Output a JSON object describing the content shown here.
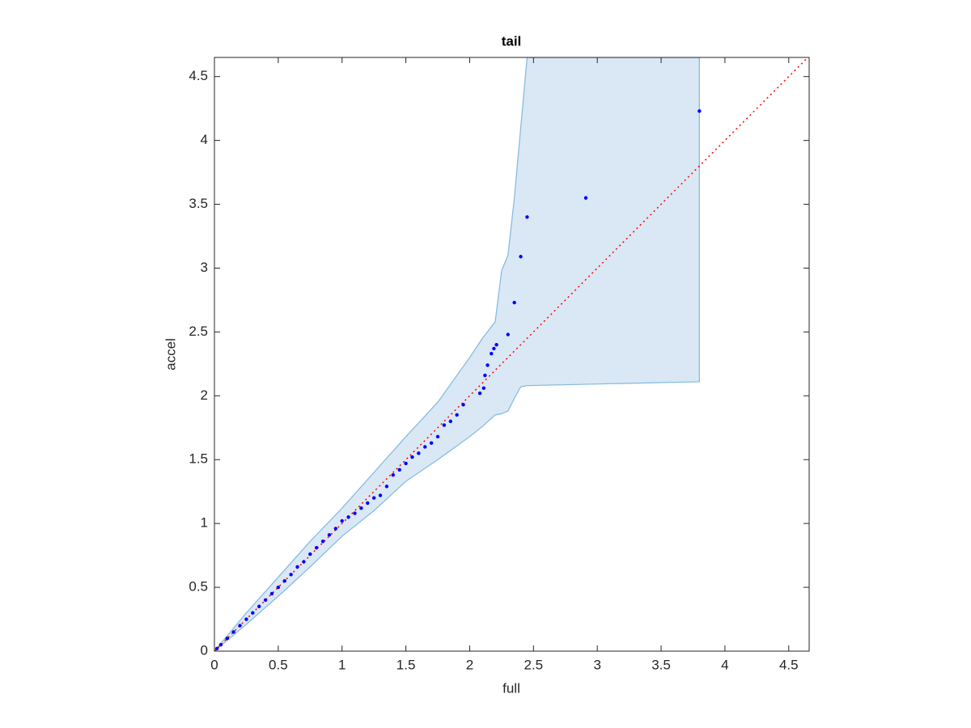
{
  "chart_data": {
    "type": "scatter",
    "title": "tail",
    "x_label": "full",
    "y_label": "accel",
    "xlim": [
      0,
      4.66
    ],
    "ylim": [
      0,
      4.65
    ],
    "xticks": [
      0,
      0.5,
      1,
      1.5,
      2,
      2.5,
      3,
      3.5,
      4,
      4.5
    ],
    "yticks": [
      0,
      0.5,
      1,
      1.5,
      2,
      2.5,
      3,
      3.5,
      4,
      4.5
    ],
    "band": {
      "color": "#d9e8f4",
      "edge_color": "#80b9dd",
      "x": [
        0,
        0.25,
        0.5,
        0.75,
        1,
        1.25,
        1.5,
        1.75,
        2,
        2.1,
        2.2,
        2.25,
        2.3,
        2.35,
        2.4,
        2.45,
        3.8
      ],
      "upper": [
        0,
        0.3,
        0.58,
        0.86,
        1.12,
        1.4,
        1.68,
        1.95,
        2.3,
        2.45,
        2.58,
        2.98,
        3.1,
        3.55,
        4.1,
        4.65,
        4.65
      ],
      "lower": [
        0,
        0.21,
        0.43,
        0.66,
        0.9,
        1.1,
        1.33,
        1.5,
        1.68,
        1.76,
        1.85,
        1.86,
        1.88,
        1.98,
        2.07,
        2.08,
        2.11
      ]
    },
    "reference_line": {
      "color": "#ff0000",
      "x": [
        0,
        4.66
      ],
      "y": [
        0,
        4.66
      ]
    },
    "points": {
      "color": "#0000ff",
      "x": [
        0.02,
        0.05,
        0.1,
        0.15,
        0.2,
        0.25,
        0.3,
        0.35,
        0.4,
        0.45,
        0.5,
        0.55,
        0.6,
        0.65,
        0.7,
        0.75,
        0.8,
        0.85,
        0.9,
        0.95,
        1.0,
        1.05,
        1.1,
        1.15,
        1.2,
        1.25,
        1.3,
        1.35,
        1.4,
        1.45,
        1.5,
        1.55,
        1.6,
        1.65,
        1.7,
        1.75,
        1.8,
        1.85,
        1.9,
        1.95,
        2.08,
        2.11,
        2.12,
        2.14,
        2.17,
        2.19,
        2.21,
        2.3,
        2.35,
        2.4,
        2.45,
        2.91,
        3.8
      ],
      "y": [
        0.02,
        0.05,
        0.1,
        0.15,
        0.2,
        0.25,
        0.3,
        0.35,
        0.4,
        0.45,
        0.5,
        0.55,
        0.6,
        0.66,
        0.7,
        0.76,
        0.81,
        0.86,
        0.91,
        0.96,
        1.02,
        1.05,
        1.08,
        1.12,
        1.16,
        1.2,
        1.22,
        1.29,
        1.38,
        1.42,
        1.47,
        1.52,
        1.55,
        1.6,
        1.63,
        1.68,
        1.77,
        1.8,
        1.85,
        1.93,
        2.02,
        2.06,
        2.16,
        2.24,
        2.33,
        2.37,
        2.4,
        2.48,
        2.73,
        3.09,
        3.4,
        3.55,
        4.23
      ]
    }
  }
}
